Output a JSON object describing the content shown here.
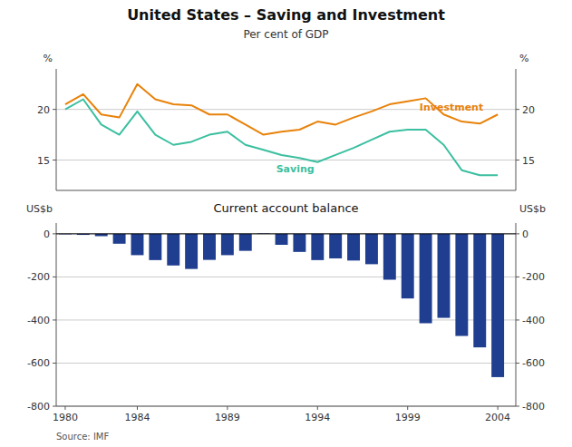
{
  "chart_data": [
    {
      "type": "line",
      "title": "United States – Saving and Investment",
      "subtitle": "Per cent of GDP",
      "ylabel": "%",
      "y2label": "%",
      "x": [
        1980,
        1981,
        1982,
        1983,
        1984,
        1985,
        1986,
        1987,
        1988,
        1989,
        1990,
        1991,
        1992,
        1993,
        1994,
        1995,
        1996,
        1997,
        1998,
        1999,
        2000,
        2001,
        2002,
        2003,
        2004
      ],
      "xlim": [
        1979.5,
        2005
      ],
      "tick_labels": "y",
      "ylim": [
        12,
        24
      ],
      "yticks": [
        15,
        20
      ],
      "y2lim": [
        12,
        24
      ],
      "y2ticks": [
        15,
        20
      ],
      "grid": true,
      "series": [
        {
          "name": "Investment",
          "color": "#E8820A",
          "values": [
            20.5,
            21.5,
            19.5,
            19.2,
            22.5,
            21.0,
            20.5,
            20.4,
            19.5,
            19.5,
            18.5,
            17.5,
            17.8,
            18.0,
            18.8,
            18.5,
            19.2,
            19.8,
            20.5,
            20.8,
            21.1,
            19.5,
            18.8,
            18.6,
            19.5
          ]
        },
        {
          "name": "Saving",
          "color": "#3BBFA0",
          "values": [
            20.0,
            21.0,
            18.5,
            17.5,
            19.8,
            17.5,
            16.5,
            16.8,
            17.5,
            17.8,
            16.5,
            16.0,
            15.5,
            15.2,
            14.8,
            15.5,
            16.2,
            17.0,
            17.8,
            18.0,
            18.0,
            16.5,
            14.0,
            13.5,
            13.5
          ]
        }
      ]
    },
    {
      "type": "bar",
      "title": "Current account balance",
      "ylabel": "US$b",
      "y2label": "US$b",
      "source": "Source: IMF",
      "x": [
        1980,
        1981,
        1982,
        1983,
        1984,
        1985,
        1986,
        1987,
        1988,
        1989,
        1990,
        1991,
        1992,
        1993,
        1994,
        1995,
        1996,
        1997,
        1998,
        1999,
        2000,
        2001,
        2002,
        2003,
        2004
      ],
      "values": [
        -2,
        -5,
        -11,
        -46,
        -99,
        -122,
        -147,
        -163,
        -121,
        -99,
        -79,
        2,
        -51,
        -84,
        -122,
        -114,
        -124,
        -141,
        -213,
        -300,
        -415,
        -390,
        -474,
        -527,
        -665
      ],
      "color": "#1F3E8F",
      "xlim": [
        1979.5,
        2005
      ],
      "xticks": [
        1980,
        1984,
        1989,
        1994,
        1999,
        2004
      ],
      "ylim": [
        -800,
        50
      ],
      "yticks": [
        0,
        -200,
        -400,
        -600,
        -800
      ],
      "y2lim": [
        -800,
        50
      ],
      "y2ticks": [
        0,
        -200,
        -400,
        -600,
        -800
      ],
      "grid": true
    }
  ]
}
